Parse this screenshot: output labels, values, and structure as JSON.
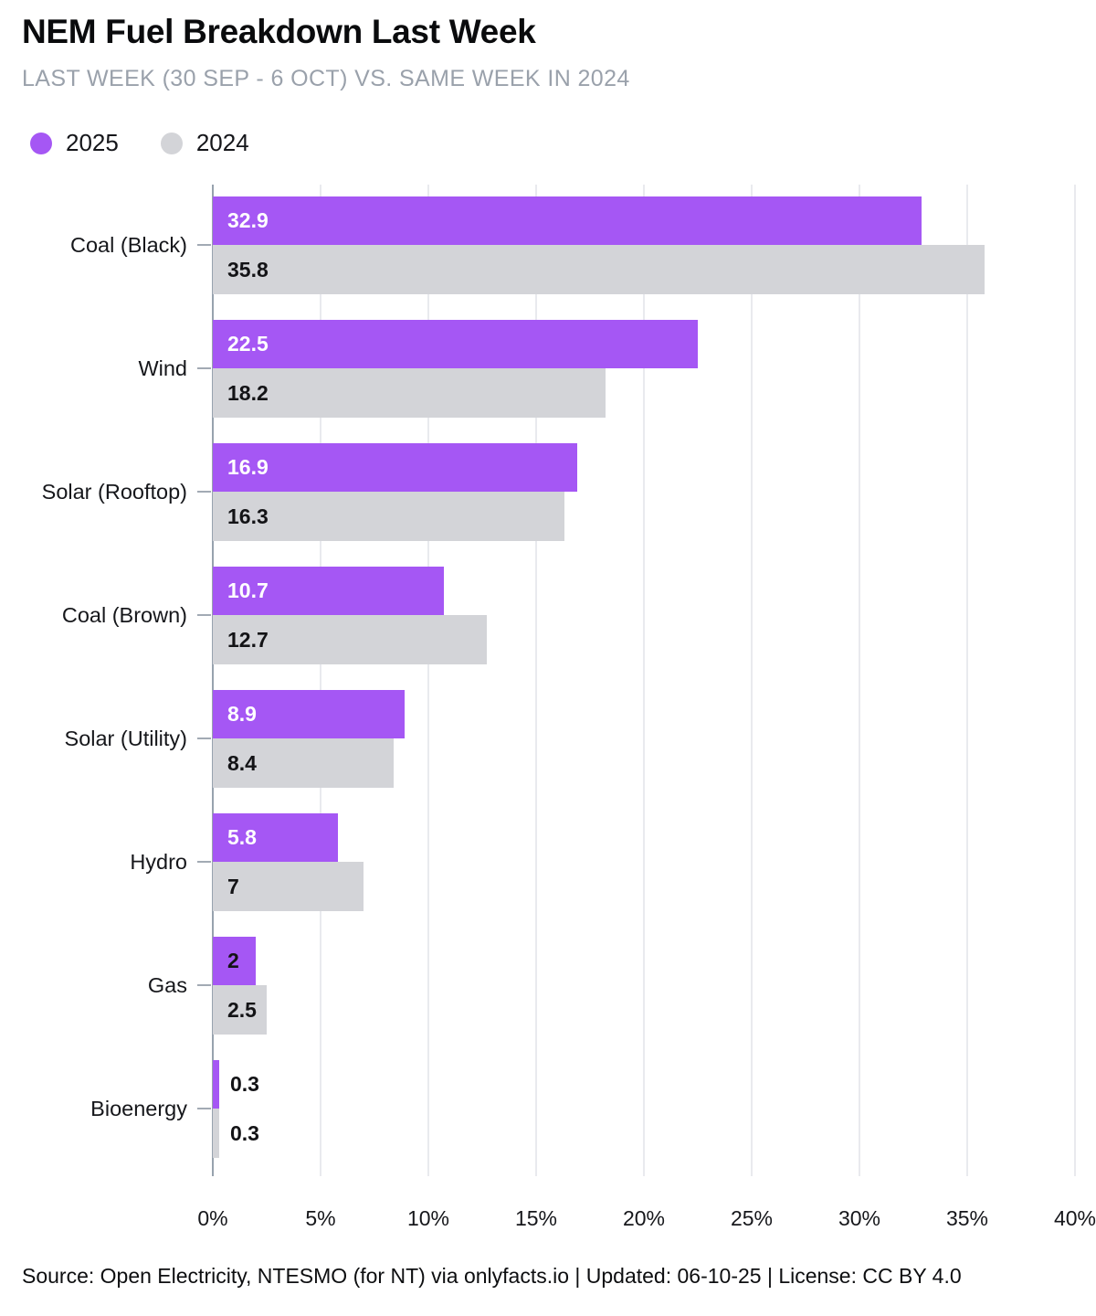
{
  "header": {
    "title": "NEM Fuel Breakdown Last Week",
    "subtitle": "LAST WEEK (30 SEP - 6 OCT) VS. SAME WEEK IN 2024"
  },
  "legend": {
    "items": [
      {
        "label": "2025",
        "color": "#a557f4"
      },
      {
        "label": "2024",
        "color": "#d3d4d8"
      }
    ]
  },
  "chart_data": {
    "type": "bar",
    "orientation": "horizontal",
    "title": "NEM Fuel Breakdown Last Week",
    "subtitle": "LAST WEEK (30 SEP - 6 OCT) VS. SAME WEEK IN 2024",
    "categories": [
      "Coal (Black)",
      "Wind",
      "Solar (Rooftop)",
      "Coal (Brown)",
      "Solar (Utility)",
      "Hydro",
      "Gas",
      "Bioenergy"
    ],
    "series": [
      {
        "name": "2025",
        "color": "#a557f4",
        "values": [
          32.9,
          22.5,
          16.9,
          10.7,
          8.9,
          5.8,
          2,
          0.3
        ],
        "labels": [
          "32.9",
          "22.5",
          "16.9",
          "10.7",
          "8.9",
          "5.8",
          "2",
          "0.3"
        ]
      },
      {
        "name": "2024",
        "color": "#d3d4d8",
        "values": [
          35.8,
          18.2,
          16.3,
          12.7,
          8.4,
          7,
          2.5,
          0.3
        ],
        "labels": [
          "35.8",
          "18.2",
          "16.3",
          "12.7",
          "8.4",
          "7",
          "2.5",
          "0.3"
        ]
      }
    ],
    "xlabel": "",
    "ylabel": "",
    "axis": {
      "min": 0,
      "max": 40,
      "tick_step": 5,
      "tick_labels": [
        "0%",
        "5%",
        "10%",
        "15%",
        "20%",
        "25%",
        "30%",
        "35%",
        "40%"
      ]
    },
    "grid": true,
    "legend_position": "top-left"
  },
  "footer": {
    "text": "Source: Open Electricity, NTESMO (for NT) via onlyfacts.io | Updated: 06-10-25 | License: CC BY 4.0"
  },
  "colors": {
    "background": "#ffffff",
    "bar_2025": "#a557f4",
    "bar_2024": "#d3d4d8",
    "value_label_light": "#ffffff",
    "value_label_dark": "#131316",
    "gridline": "#e9eaee",
    "zero_line": "#97a2ae",
    "y_tick": "#a2aab4",
    "title": "#0a0b0d",
    "subtitle": "#9aa1ab",
    "category_label": "#16171b"
  }
}
